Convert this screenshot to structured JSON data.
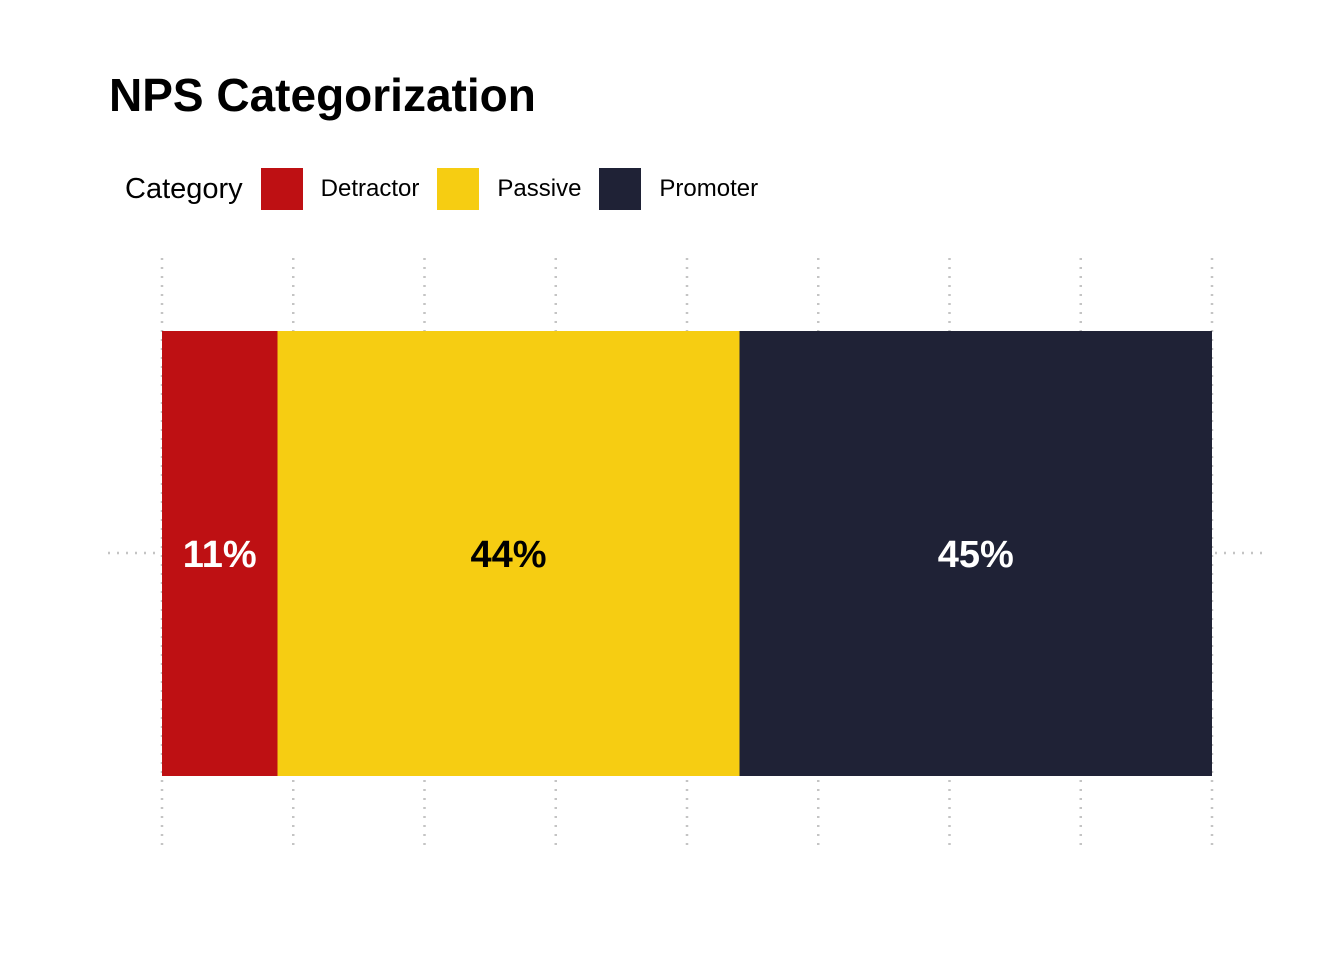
{
  "chart_data": {
    "type": "bar",
    "orientation": "horizontal",
    "stacked": true,
    "normalized": true,
    "title": "NPS Categorization",
    "legend": {
      "title": "Category",
      "placement": "top-left"
    },
    "grid": true,
    "xlim": [
      0,
      1
    ],
    "categories": [
      ""
    ],
    "series": [
      {
        "name": "Detractor",
        "values": [
          0.11
        ],
        "label": "11%",
        "color": "#BE1013",
        "label_color": "#FFFFFF"
      },
      {
        "name": "Passive",
        "values": [
          0.44
        ],
        "label": "44%",
        "color": "#F6CD12",
        "label_color": "#000000"
      },
      {
        "name": "Promoter",
        "values": [
          0.45
        ],
        "label": "45%",
        "color": "#1F2236",
        "label_color": "#FFFFFF"
      }
    ]
  }
}
